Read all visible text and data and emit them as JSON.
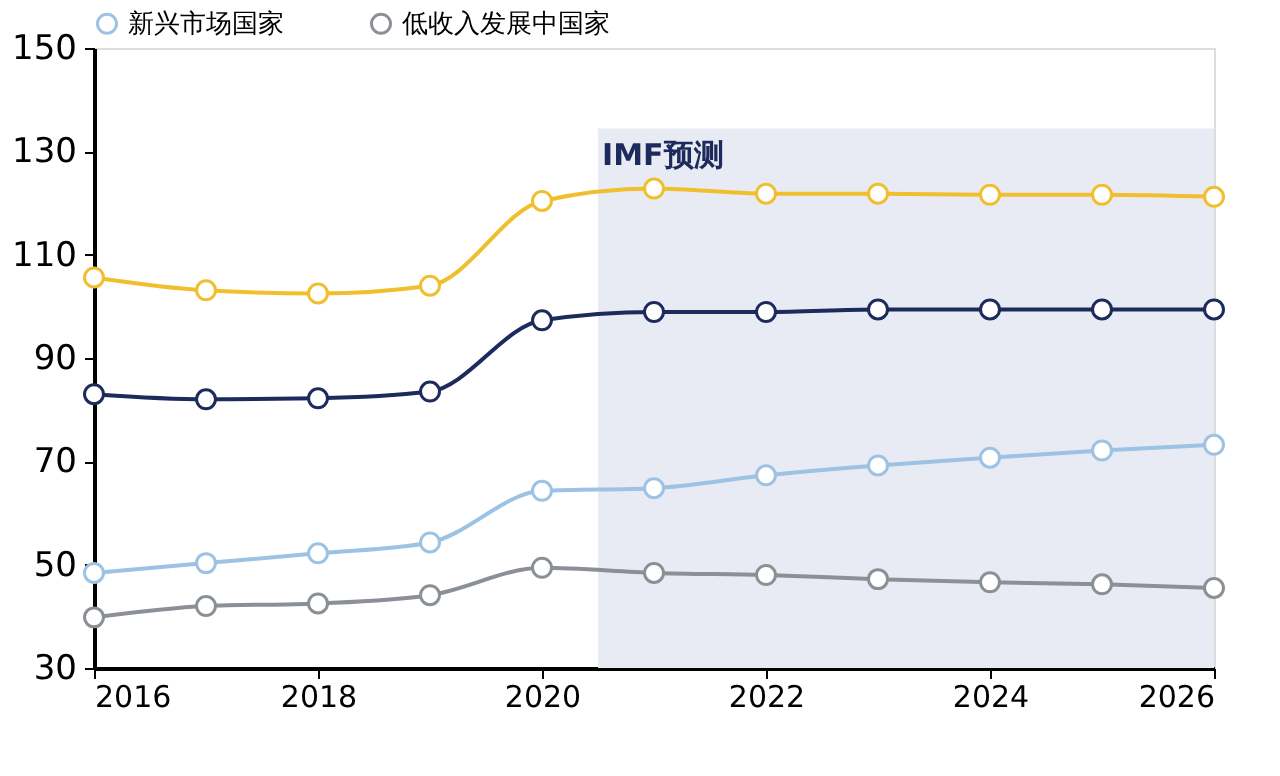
{
  "chart_data": {
    "type": "line",
    "x": [
      2016,
      2017,
      2018,
      2019,
      2020,
      2021,
      2022,
      2023,
      2024,
      2025,
      2026
    ],
    "series": [
      {
        "color": "#f0bf2e",
        "values": [
          105.6,
          103.1,
          102.5,
          104.0,
          120.4,
          122.8,
          121.8,
          121.8,
          121.6,
          121.6,
          121.2
        ]
      },
      {
        "color": "#1c2a5c",
        "values": [
          83.0,
          82.0,
          82.2,
          83.5,
          97.3,
          98.9,
          98.9,
          99.4,
          99.4,
          99.4,
          99.4
        ]
      },
      {
        "name": "新兴市场国家",
        "color": "#9cc2e4",
        "values": [
          48.4,
          50.3,
          52.2,
          54.3,
          64.3,
          64.8,
          67.3,
          69.2,
          70.7,
          72.1,
          73.2
        ]
      },
      {
        "name": "低收入发展中国家",
        "color": "#8a9096",
        "values": [
          39.8,
          42.0,
          42.5,
          44.1,
          49.4,
          48.4,
          48.0,
          47.2,
          46.6,
          46.2,
          45.5
        ]
      }
    ],
    "xlim": [
      2016,
      2026
    ],
    "xticks": [
      2016,
      2018,
      2020,
      2022,
      2024,
      2026
    ],
    "ylim": [
      30,
      150
    ],
    "yticks": [
      30,
      50,
      70,
      90,
      110,
      130,
      150
    ],
    "bands": [
      {
        "axis": "x",
        "from": 2020.5,
        "to": 2026,
        "label": "IMF预测",
        "color": "#e9ebf4"
      }
    ],
    "marker": "circle",
    "legend": "top",
    "grid": false
  }
}
